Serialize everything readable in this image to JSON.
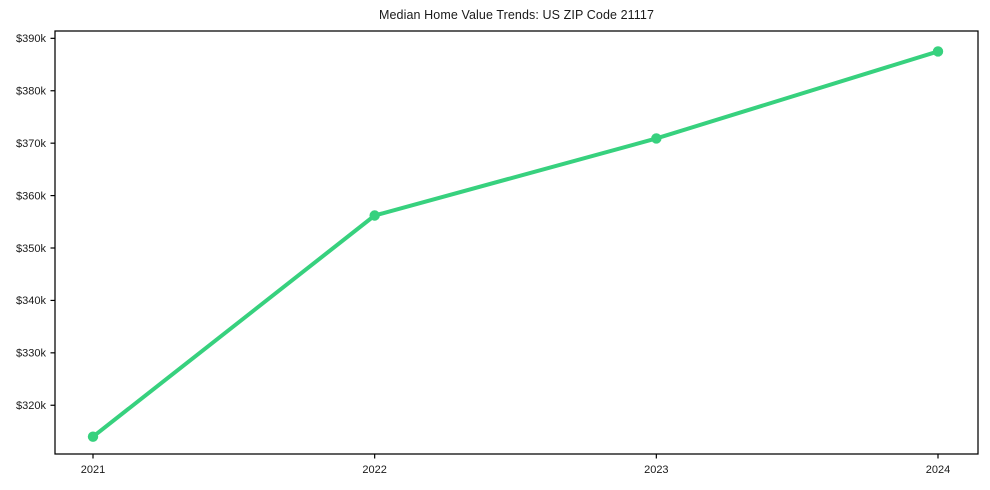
{
  "figure": {
    "background": "#ffffff",
    "frame_color": "#000000",
    "text_color": "#1a1a1a"
  },
  "chart_data": {
    "type": "line",
    "title": "Median Home Value Trends: US ZIP Code 21117",
    "xlabel": "",
    "ylabel": "",
    "categories": [
      "2021",
      "2022",
      "2023",
      "2024"
    ],
    "values": [
      314000,
      356200,
      370900,
      387500
    ],
    "y_ticks": [
      {
        "value": 320000,
        "label": "$320k"
      },
      {
        "value": 330000,
        "label": "$330k"
      },
      {
        "value": 340000,
        "label": "$340k"
      },
      {
        "value": 350000,
        "label": "$350k"
      },
      {
        "value": 360000,
        "label": "$360k"
      },
      {
        "value": 370000,
        "label": "$370k"
      },
      {
        "value": 380000,
        "label": "$380k"
      },
      {
        "value": 390000,
        "label": "$390k"
      }
    ],
    "ylim": [
      310700,
      391400
    ],
    "grid": false,
    "legend": "none",
    "line_color": "#37d17e",
    "marker": "circle"
  }
}
